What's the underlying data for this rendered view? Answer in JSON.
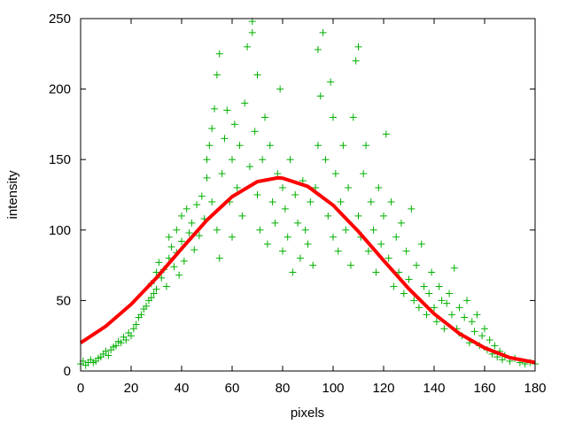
{
  "chart_data": {
    "type": "scatter",
    "title": "",
    "xlabel": "pixels",
    "ylabel": "intensity",
    "xlim": [
      0,
      180
    ],
    "ylim": [
      0,
      250
    ],
    "x_ticks": [
      "0",
      "20",
      "40",
      "60",
      "80",
      "100",
      "120",
      "140",
      "160",
      "180"
    ],
    "y_ticks": [
      "0",
      "50",
      "100",
      "150",
      "200",
      "250"
    ],
    "grid": false,
    "colors": {
      "points": "#00b000",
      "points_overlap": "#808080",
      "fit": "#ff0000"
    },
    "series": [
      {
        "type": "scatter",
        "marker": "plus",
        "points": [
          [
            0,
            5
          ],
          [
            1,
            7
          ],
          [
            2,
            4
          ],
          [
            3,
            6
          ],
          [
            4,
            8
          ],
          [
            5,
            6
          ],
          [
            6,
            7
          ],
          [
            7,
            9
          ],
          [
            8,
            10
          ],
          [
            9,
            12
          ],
          [
            10,
            14
          ],
          [
            11,
            11
          ],
          [
            12,
            15
          ],
          [
            13,
            17
          ],
          [
            14,
            18
          ],
          [
            15,
            21
          ],
          [
            16,
            20
          ],
          [
            17,
            24
          ],
          [
            18,
            22
          ],
          [
            19,
            27
          ],
          [
            20,
            25
          ],
          [
            21,
            30
          ],
          [
            22,
            33
          ],
          [
            23,
            38
          ],
          [
            24,
            40
          ],
          [
            25,
            44
          ],
          [
            26,
            46
          ],
          [
            27,
            50
          ],
          [
            28,
            52
          ],
          [
            28,
            62
          ],
          [
            29,
            55
          ],
          [
            30,
            70
          ],
          [
            30,
            58
          ],
          [
            31,
            77
          ],
          [
            32,
            66
          ],
          [
            33,
            72
          ],
          [
            34,
            60
          ],
          [
            35,
            80
          ],
          [
            35,
            95
          ],
          [
            36,
            88
          ],
          [
            37,
            74
          ],
          [
            38,
            100
          ],
          [
            38,
            84
          ],
          [
            39,
            68
          ],
          [
            40,
            92
          ],
          [
            40,
            110
          ],
          [
            41,
            78
          ],
          [
            42,
            115
          ],
          [
            43,
            98
          ],
          [
            44,
            105
          ],
          [
            45,
            86
          ],
          [
            46,
            118
          ],
          [
            47,
            96
          ],
          [
            48,
            124
          ],
          [
            49,
            108
          ],
          [
            50,
            137
          ],
          [
            50,
            150
          ],
          [
            51,
            160
          ],
          [
            52,
            120
          ],
          [
            52,
            172
          ],
          [
            53,
            186
          ],
          [
            54,
            100
          ],
          [
            54,
            210
          ],
          [
            55,
            225
          ],
          [
            55,
            80
          ],
          [
            56,
            140
          ],
          [
            57,
            165
          ],
          [
            58,
            185
          ],
          [
            59,
            120
          ],
          [
            60,
            150
          ],
          [
            60,
            95
          ],
          [
            61,
            175
          ],
          [
            62,
            130
          ],
          [
            63,
            160
          ],
          [
            64,
            110
          ],
          [
            65,
            190
          ],
          [
            66,
            230
          ],
          [
            67,
            145
          ],
          [
            68,
            248
          ],
          [
            68,
            240
          ],
          [
            69,
            170
          ],
          [
            70,
            210
          ],
          [
            70,
            125
          ],
          [
            71,
            100
          ],
          [
            72,
            150
          ],
          [
            73,
            180
          ],
          [
            74,
            90
          ],
          [
            75,
            160
          ],
          [
            76,
            120
          ],
          [
            77,
            105
          ],
          [
            78,
            140
          ],
          [
            79,
            200
          ],
          [
            80,
            85
          ],
          [
            80,
            130
          ],
          [
            81,
            115
          ],
          [
            82,
            95
          ],
          [
            83,
            150
          ],
          [
            84,
            70
          ],
          [
            85,
            125
          ],
          [
            86,
            105
          ],
          [
            87,
            80
          ],
          [
            88,
            135
          ],
          [
            89,
            100
          ],
          [
            90,
            90
          ],
          [
            91,
            120
          ],
          [
            92,
            75
          ],
          [
            93,
            130
          ],
          [
            94,
            160
          ],
          [
            94,
            228
          ],
          [
            95,
            195
          ],
          [
            96,
            240
          ],
          [
            97,
            150
          ],
          [
            98,
            110
          ],
          [
            99,
            205
          ],
          [
            100,
            180
          ],
          [
            100,
            95
          ],
          [
            101,
            140
          ],
          [
            102,
            85
          ],
          [
            103,
            120
          ],
          [
            104,
            160
          ],
          [
            105,
            100
          ],
          [
            106,
            130
          ],
          [
            107,
            75
          ],
          [
            108,
            180
          ],
          [
            109,
            220
          ],
          [
            110,
            230
          ],
          [
            110,
            110
          ],
          [
            111,
            95
          ],
          [
            112,
            140
          ],
          [
            113,
            160
          ],
          [
            114,
            85
          ],
          [
            115,
            120
          ],
          [
            116,
            100
          ],
          [
            117,
            70
          ],
          [
            118,
            130
          ],
          [
            119,
            90
          ],
          [
            120,
            110
          ],
          [
            121,
            168
          ],
          [
            122,
            80
          ],
          [
            123,
            120
          ],
          [
            124,
            60
          ],
          [
            125,
            95
          ],
          [
            126,
            70
          ],
          [
            127,
            105
          ],
          [
            128,
            55
          ],
          [
            129,
            85
          ],
          [
            130,
            65
          ],
          [
            131,
            115
          ],
          [
            132,
            50
          ],
          [
            133,
            75
          ],
          [
            134,
            45
          ],
          [
            135,
            90
          ],
          [
            136,
            60
          ],
          [
            137,
            40
          ],
          [
            138,
            55
          ],
          [
            139,
            70
          ],
          [
            140,
            45
          ],
          [
            141,
            35
          ],
          [
            142,
            60
          ],
          [
            143,
            50
          ],
          [
            144,
            30
          ],
          [
            145,
            48
          ],
          [
            146,
            55
          ],
          [
            147,
            40
          ],
          [
            148,
            73
          ],
          [
            149,
            30
          ],
          [
            150,
            45
          ],
          [
            151,
            25
          ],
          [
            152,
            38
          ],
          [
            153,
            50
          ],
          [
            154,
            20
          ],
          [
            155,
            35
          ],
          [
            156,
            28
          ],
          [
            157,
            40
          ],
          [
            158,
            18
          ],
          [
            159,
            25
          ],
          [
            160,
            30
          ],
          [
            161,
            15
          ],
          [
            162,
            22
          ],
          [
            163,
            12
          ],
          [
            164,
            18
          ],
          [
            165,
            10
          ],
          [
            166,
            14
          ],
          [
            167,
            8
          ],
          [
            168,
            11
          ],
          [
            170,
            7
          ],
          [
            172,
            9
          ],
          [
            174,
            6
          ],
          [
            176,
            5
          ],
          [
            178,
            6
          ],
          [
            180,
            5
          ]
        ]
      },
      {
        "type": "line",
        "x": [
          0,
          10,
          20,
          30,
          40,
          50,
          60,
          70,
          78,
          80,
          90,
          100,
          110,
          120,
          130,
          140,
          150,
          160,
          170,
          180
        ],
        "y": [
          20,
          31.8,
          47.3,
          66,
          86.8,
          107,
          123.7,
          134.3,
          137,
          136.8,
          130.9,
          117.6,
          99,
          78.4,
          58.3,
          40.6,
          26.6,
          16.4,
          9.4,
          6
        ]
      }
    ]
  }
}
